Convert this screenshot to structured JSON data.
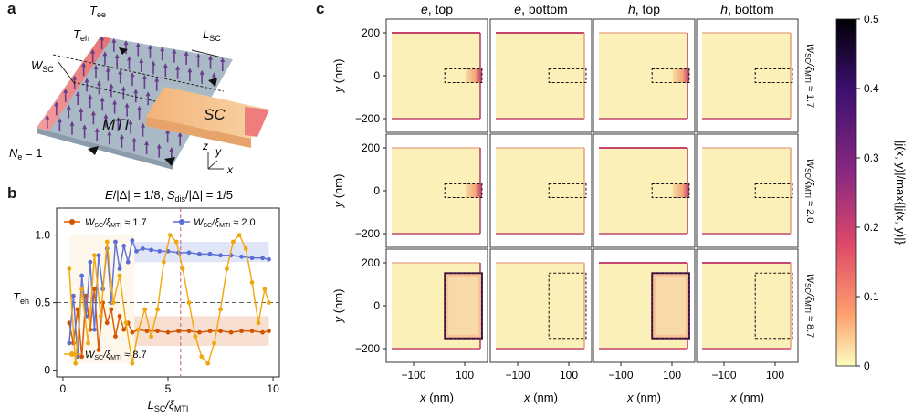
{
  "panel_a": {
    "letter": "a",
    "labels": {
      "tee": "T",
      "tee_sub": "ee",
      "teh": "T",
      "teh_sub": "eh",
      "wsc": "W",
      "wsc_sub": "SC",
      "lsc": "L",
      "lsc_sub": "SC",
      "mti": "MTI",
      "sc": "SC",
      "ne": "N",
      "ne_sub": "e",
      "ne_val": " = 1",
      "axis_z": "z",
      "axis_y": "y",
      "axis_x": "x"
    },
    "colors": {
      "slab": "#a9b9c6",
      "lead": "#f08080",
      "sc": "#f7c98f",
      "arrow": "#6a3d8c"
    }
  },
  "panel_b": {
    "letter": "b",
    "title_parts": [
      "E",
      "/|Δ| = 1/8, ",
      "S",
      "dis",
      "/|Δ| = 1/5"
    ],
    "legend": [
      {
        "name_main": "W",
        "name_sub1": "SC",
        "name_mid": "/ξ",
        "name_sub2": "MTI",
        "name_end": " ≈ 1.7",
        "color": "#d35400"
      },
      {
        "name_main": "W",
        "name_sub1": "SC",
        "name_mid": "/ξ",
        "name_sub2": "MTI",
        "name_end": " ≈ 2.0",
        "color": "#5b6ed6"
      },
      {
        "name_main": "W",
        "name_sub1": "SC",
        "name_mid": "/ξ",
        "name_sub2": "MTI",
        "name_end": " ≈ 8.7",
        "color": "#f0a70c"
      }
    ],
    "ylabel_main": "T",
    "ylabel_sub": "eh",
    "xlabel_main": "L",
    "xlabel_sub1": "SC",
    "xlabel_mid": "/ξ",
    "xlabel_sub2": "MTI"
  },
  "panel_c": {
    "letter": "c",
    "column_titles": [
      {
        "italic": "e",
        "rest": ", top"
      },
      {
        "italic": "e",
        "rest": ", bottom"
      },
      {
        "italic": "h",
        "rest": ", top"
      },
      {
        "italic": "h",
        "rest": ", bottom"
      }
    ],
    "row_labels": [
      {
        "main": "W",
        "sub1": "SC",
        "mid": "/ξ",
        "sub2": "MTI",
        "end": " ≈ 1.7"
      },
      {
        "main": "W",
        "sub1": "SC",
        "mid": "/ξ",
        "sub2": "MTI",
        "end": " ≈ 2.0"
      },
      {
        "main": "W",
        "sub1": "SC",
        "mid": "/ξ",
        "sub2": "MTI",
        "end": " ≈ 8.7"
      }
    ],
    "ylabel": "y (nm)",
    "xlabel": "x (nm)",
    "yticks": [
      "200",
      "0",
      "−200"
    ],
    "xticks": [
      "−100",
      "100"
    ],
    "colorbar": {
      "ticks": [
        "0.5",
        "0.4",
        "0.3",
        "0.2",
        "0.1",
        "0"
      ],
      "label": "|j(x, y)|/max{|j(x, y)|}",
      "stops": [
        "#000004",
        "#3b0f70",
        "#8c2981",
        "#de4968",
        "#fe9f6d",
        "#fcfdbf"
      ]
    }
  },
  "chart_data": {
    "type": "line",
    "title": "E/|Δ| = 1/8, S_dis/|Δ| = 1/5",
    "xlabel": "L_SC/ξ_MTI",
    "ylabel": "T_eh",
    "xlim": [
      -0.3,
      10.3
    ],
    "ylim": [
      -0.05,
      1.2
    ],
    "xticks": [
      0,
      5,
      10
    ],
    "yticks": [
      0,
      0.5,
      1.0
    ],
    "xtick_labels": [
      "0",
      "5",
      "10"
    ],
    "ytick_labels": [
      "0",
      "0.5",
      "1.0"
    ],
    "vline": 5.6,
    "hlines": [
      0.5,
      1.0
    ],
    "series": [
      {
        "name": "W_SC/ξ_MTI ≈ 1.7",
        "color": "#d35400",
        "band": [
          0.18,
          0.4
        ],
        "x": [
          0.3,
          0.5,
          0.7,
          0.9,
          1.1,
          1.3,
          1.5,
          1.7,
          1.9,
          2.1,
          2.3,
          2.5,
          2.7,
          2.9,
          3.1,
          3.3,
          3.6,
          4.0,
          4.5,
          5.0,
          5.5,
          6.0,
          6.5,
          7.0,
          7.5,
          8.0,
          8.5,
          9.0,
          9.5,
          9.8
        ],
        "y": [
          0.35,
          0.2,
          0.45,
          0.1,
          0.55,
          0.3,
          0.6,
          0.15,
          0.5,
          0.35,
          0.45,
          0.25,
          0.4,
          0.3,
          0.35,
          0.28,
          0.3,
          0.29,
          0.29,
          0.28,
          0.29,
          0.29,
          0.28,
          0.29,
          0.29,
          0.28,
          0.29,
          0.29,
          0.28,
          0.29
        ]
      },
      {
        "name": "W_SC/ξ_MTI ≈ 2.0",
        "color": "#5b6ed6",
        "band": [
          0.8,
          0.95
        ],
        "x": [
          0.3,
          0.5,
          0.7,
          0.9,
          1.1,
          1.3,
          1.5,
          1.7,
          1.9,
          2.1,
          2.3,
          2.5,
          2.7,
          2.9,
          3.1,
          3.3,
          3.5,
          3.8,
          4.2,
          4.6,
          5.0,
          5.5,
          6.0,
          6.5,
          7.0,
          7.5,
          8.0,
          8.5,
          9.0,
          9.5,
          9.8
        ],
        "y": [
          0.2,
          0.55,
          0.1,
          0.7,
          0.4,
          0.8,
          0.3,
          0.85,
          0.6,
          0.9,
          0.5,
          0.95,
          0.75,
          0.92,
          0.8,
          0.96,
          0.88,
          0.9,
          0.89,
          0.88,
          0.88,
          0.87,
          0.87,
          0.86,
          0.86,
          0.85,
          0.85,
          0.84,
          0.83,
          0.83,
          0.82
        ]
      },
      {
        "name": "W_SC/ξ_MTI ≈ 8.7",
        "color": "#f0a70c",
        "band": null,
        "x": [
          0.3,
          0.6,
          0.9,
          1.2,
          1.5,
          1.8,
          2.1,
          2.4,
          2.7,
          3.0,
          3.3,
          3.6,
          3.9,
          4.2,
          4.5,
          4.8,
          5.1,
          5.4,
          5.7,
          6.0,
          6.3,
          6.6,
          6.9,
          7.2,
          7.5,
          7.8,
          8.1,
          8.4,
          8.7,
          9.0,
          9.3,
          9.6,
          9.8
        ],
        "y": [
          0.75,
          0.05,
          0.6,
          0.2,
          0.85,
          0.4,
          0.95,
          0.5,
          0.7,
          0.35,
          0.05,
          0.3,
          0.45,
          0.25,
          0.45,
          0.8,
          1.0,
          0.95,
          0.75,
          0.5,
          0.25,
          0.1,
          0.05,
          0.2,
          0.45,
          0.75,
          0.95,
          1.0,
          0.9,
          0.65,
          0.35,
          0.6,
          0.5
        ]
      }
    ]
  }
}
